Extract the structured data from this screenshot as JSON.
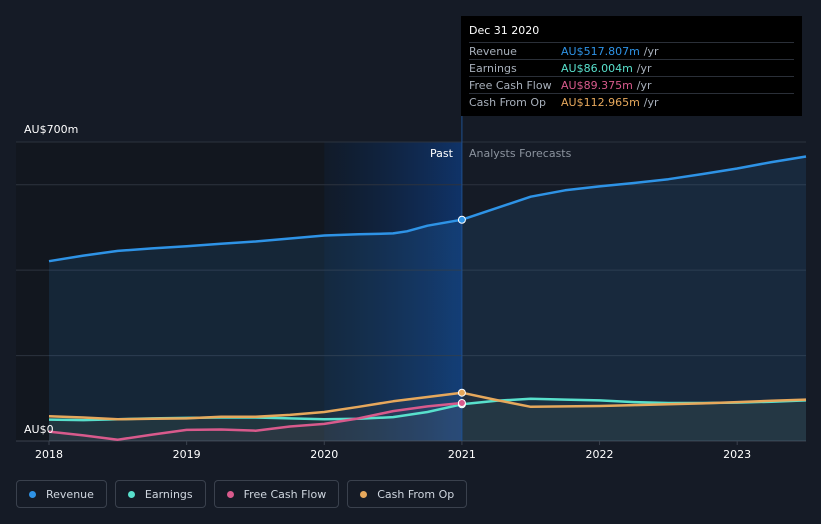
{
  "chart_data": {
    "type": "area",
    "y_max_label": "AU$700m",
    "y_min_label": "AU$0",
    "ylim": [
      0,
      700
    ],
    "past_label": "Past",
    "forecast_label": "Analysts Forecasts",
    "x_ticks": [
      "2018",
      "2019",
      "2020",
      "2021",
      "2022",
      "2023"
    ],
    "x_range": [
      2018.0,
      2023.5
    ],
    "series": [
      {
        "name": "Revenue",
        "color": "#2e93e6",
        "points": [
          [
            2018.0,
            421
          ],
          [
            2018.25,
            434
          ],
          [
            2018.5,
            445
          ],
          [
            2018.75,
            451
          ],
          [
            2019.0,
            456
          ],
          [
            2019.25,
            462
          ],
          [
            2019.5,
            467
          ],
          [
            2019.75,
            474
          ],
          [
            2020.0,
            481
          ],
          [
            2020.25,
            484
          ],
          [
            2020.5,
            486
          ],
          [
            2020.6,
            491
          ],
          [
            2020.75,
            504
          ],
          [
            2021.0,
            518
          ],
          [
            2021.25,
            545
          ],
          [
            2021.5,
            572
          ],
          [
            2021.75,
            587
          ],
          [
            2022.0,
            596
          ],
          [
            2022.25,
            604
          ],
          [
            2022.5,
            613
          ],
          [
            2022.75,
            625
          ],
          [
            2023.0,
            638
          ],
          [
            2023.25,
            653
          ],
          [
            2023.5,
            666
          ]
        ]
      },
      {
        "name": "Earnings",
        "color": "#58e0cc",
        "points": [
          [
            2018.0,
            50
          ],
          [
            2018.25,
            49
          ],
          [
            2018.5,
            51
          ],
          [
            2018.75,
            53
          ],
          [
            2019.0,
            54
          ],
          [
            2019.25,
            55
          ],
          [
            2019.5,
            55
          ],
          [
            2019.75,
            53
          ],
          [
            2020.0,
            51
          ],
          [
            2020.25,
            52
          ],
          [
            2020.5,
            56
          ],
          [
            2020.75,
            68
          ],
          [
            2021.0,
            86
          ],
          [
            2021.25,
            94
          ],
          [
            2021.5,
            99
          ],
          [
            2021.75,
            97
          ],
          [
            2022.0,
            95
          ],
          [
            2022.25,
            91
          ],
          [
            2022.5,
            89
          ],
          [
            2022.75,
            89
          ],
          [
            2023.0,
            90
          ],
          [
            2023.25,
            92
          ],
          [
            2023.5,
            95
          ]
        ]
      },
      {
        "name": "Free Cash Flow",
        "color": "#d85a8c",
        "points": [
          [
            2018.0,
            22
          ],
          [
            2018.25,
            13
          ],
          [
            2018.5,
            3
          ],
          [
            2018.75,
            15
          ],
          [
            2019.0,
            26
          ],
          [
            2019.25,
            27
          ],
          [
            2019.5,
            24
          ],
          [
            2019.75,
            34
          ],
          [
            2020.0,
            40
          ],
          [
            2020.25,
            53
          ],
          [
            2020.5,
            70
          ],
          [
            2020.75,
            81
          ],
          [
            2021.0,
            89
          ]
        ]
      },
      {
        "name": "Cash From Op",
        "color": "#e6a85c",
        "points": [
          [
            2018.0,
            58
          ],
          [
            2018.25,
            55
          ],
          [
            2018.5,
            51
          ],
          [
            2018.75,
            52
          ],
          [
            2019.0,
            53
          ],
          [
            2019.25,
            57
          ],
          [
            2019.5,
            57
          ],
          [
            2019.75,
            61
          ],
          [
            2020.0,
            68
          ],
          [
            2020.25,
            80
          ],
          [
            2020.5,
            93
          ],
          [
            2020.75,
            103
          ],
          [
            2021.0,
            113
          ],
          [
            2021.25,
            96
          ],
          [
            2021.5,
            80
          ],
          [
            2021.75,
            81
          ],
          [
            2022.0,
            82
          ],
          [
            2022.25,
            84
          ],
          [
            2022.5,
            86
          ],
          [
            2022.75,
            88
          ],
          [
            2023.0,
            91
          ],
          [
            2023.25,
            94
          ],
          [
            2023.5,
            97
          ]
        ]
      }
    ],
    "highlight_x": 2021.0,
    "tooltip": {
      "date": "Dec 31 2020",
      "rows": [
        {
          "label": "Revenue",
          "value": "AU$517.807m",
          "unit": "/yr",
          "color": "#2e93e6"
        },
        {
          "label": "Earnings",
          "value": "AU$86.004m",
          "unit": "/yr",
          "color": "#58e0cc"
        },
        {
          "label": "Free Cash Flow",
          "value": "AU$89.375m",
          "unit": "/yr",
          "color": "#d85a8c"
        },
        {
          "label": "Cash From Op",
          "value": "AU$112.965m",
          "unit": "/yr",
          "color": "#e6a85c"
        }
      ]
    }
  },
  "legend": [
    {
      "label": "Revenue",
      "color": "#2e93e6"
    },
    {
      "label": "Earnings",
      "color": "#58e0cc"
    },
    {
      "label": "Free Cash Flow",
      "color": "#d85a8c"
    },
    {
      "label": "Cash From Op",
      "color": "#e6a85c"
    }
  ]
}
